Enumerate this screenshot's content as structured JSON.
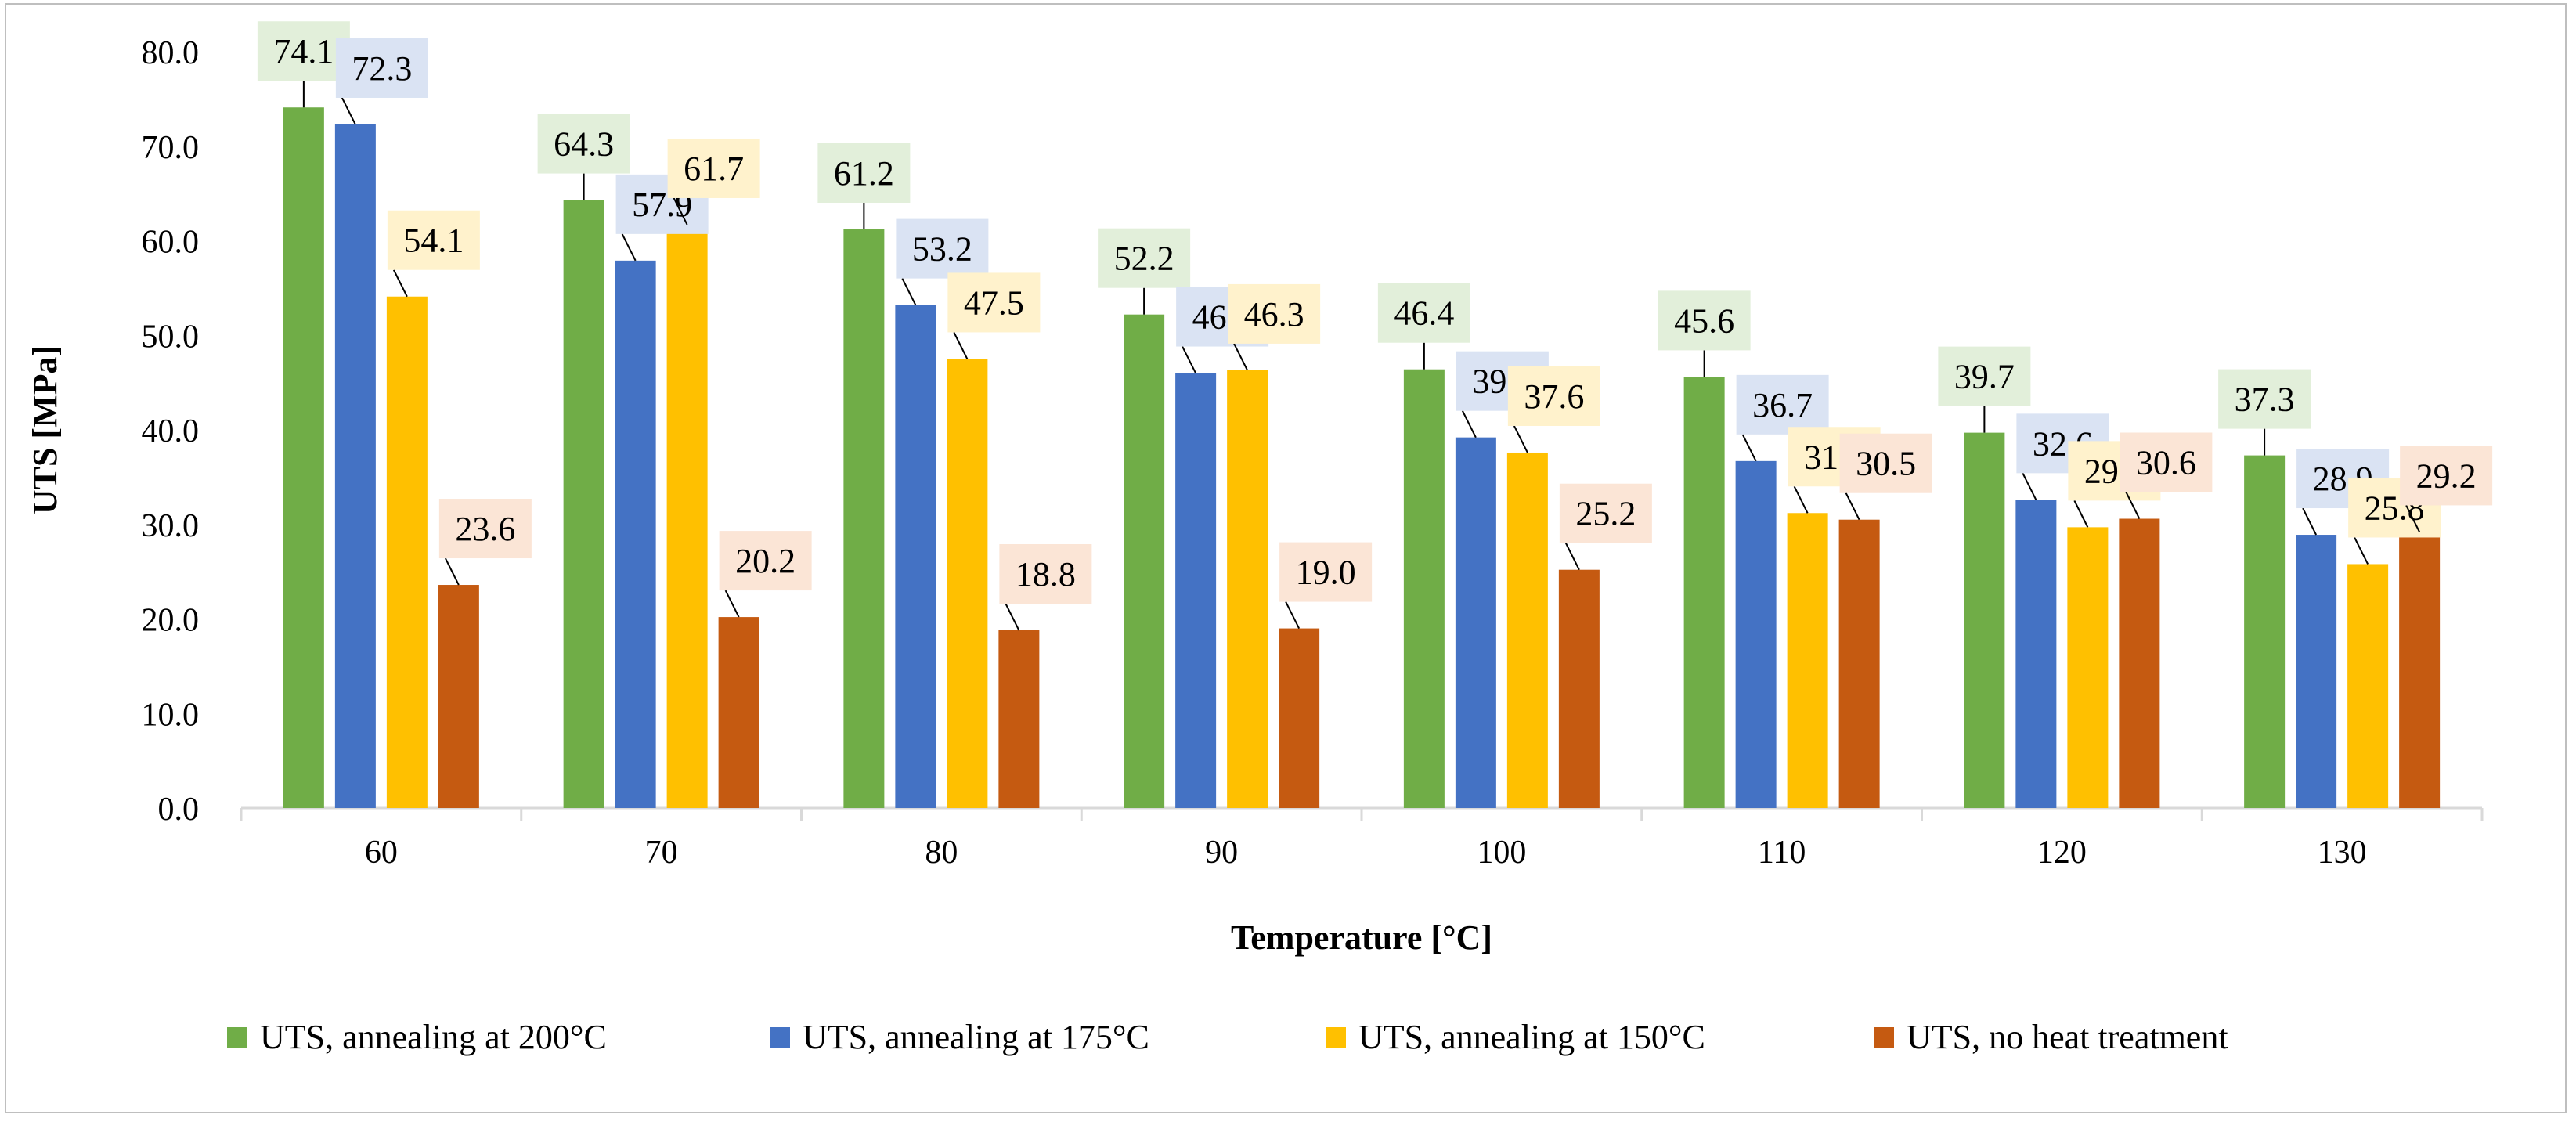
{
  "chart_data": {
    "type": "bar",
    "title": "",
    "xlabel": "Temperature [°C]",
    "ylabel": "UTS [MPa]",
    "ylim": [
      0,
      80
    ],
    "ytick_step": 10,
    "ytick_labels": [
      "0.0",
      "10.0",
      "20.0",
      "30.0",
      "40.0",
      "50.0",
      "60.0",
      "70.0",
      "80.0"
    ],
    "categories": [
      "60",
      "70",
      "80",
      "90",
      "100",
      "110",
      "120",
      "130"
    ],
    "legend_position": "bottom",
    "grid": false,
    "series": [
      {
        "name": "UTS, annealing at 200°C",
        "color": "#70ad47",
        "label_bg": "#e2efda",
        "values": [
          74.1,
          64.3,
          61.2,
          52.2,
          46.4,
          45.6,
          39.7,
          37.3
        ],
        "labels": [
          "74.1",
          "64.3",
          "61.2",
          "52.2",
          "46.4",
          "45.6",
          "39.7",
          "37.3"
        ]
      },
      {
        "name": "UTS, annealing at 175°C",
        "color": "#4472c4",
        "label_bg": "#dae3f3",
        "values": [
          72.3,
          57.9,
          53.2,
          46.0,
          39.2,
          36.7,
          32.6,
          28.9
        ],
        "labels": [
          "72.3",
          "57.9",
          "53.2",
          "46.0",
          "39.2",
          "36.7",
          "32.6",
          "28.9"
        ]
      },
      {
        "name": "UTS, annealing at 150°C",
        "color": "#ffc000",
        "label_bg": "#fff2cc",
        "values": [
          54.1,
          61.7,
          47.5,
          46.3,
          37.6,
          31.2,
          29.7,
          25.8
        ],
        "labels": [
          "54.1",
          "61.7",
          "47.5",
          "46.3",
          "37.6",
          "31.2",
          "29.7",
          "25.8"
        ]
      },
      {
        "name": "UTS, no heat treatment",
        "color": "#c55a11",
        "label_bg": "#fbe5d6",
        "values": [
          23.6,
          20.2,
          18.8,
          19.0,
          25.2,
          30.5,
          30.6,
          29.2
        ],
        "labels": [
          "23.6",
          "20.2",
          "18.8",
          "19.0",
          "25.2",
          "30.5",
          "30.6",
          "29.2"
        ]
      }
    ]
  }
}
